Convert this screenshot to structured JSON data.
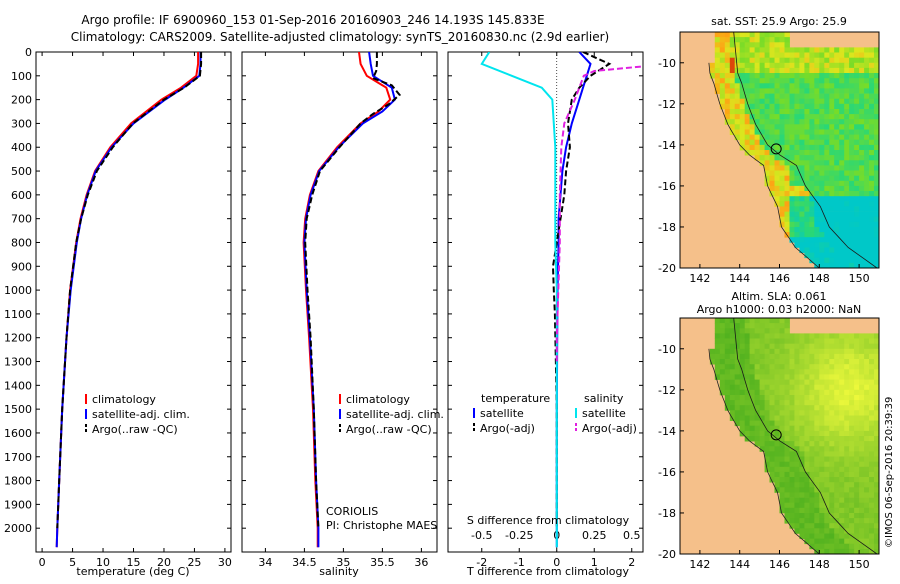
{
  "header": {
    "line1": "Argo profile: IF 6900960_153 01-Sep-2016 20160903_246 14.193S 145.833E",
    "line2": "Climatology: CARS2009. Satellite-adjusted climatology: synTS_20160830.nc (2.9d earlier)"
  },
  "colors": {
    "climatology": "#ff0000",
    "satellite": "#0000ff",
    "argo": "#000000",
    "salinity_satellite": "#00e5ee",
    "salinity_argo": "#e020e0",
    "land": "#f5c08a"
  },
  "chart_data": [
    {
      "type": "line",
      "id": "temperature",
      "xlabel": "temperature (deg C)",
      "xlim": [
        -1,
        31
      ],
      "ylim": [
        2100,
        0
      ],
      "xticks": [
        0,
        5,
        10,
        15,
        20,
        25,
        30
      ],
      "yticks": [
        0,
        100,
        200,
        300,
        400,
        500,
        600,
        700,
        800,
        900,
        1000,
        1100,
        1200,
        1300,
        1400,
        1500,
        1600,
        1700,
        1800,
        1900,
        2000
      ],
      "legend": [
        "climatology",
        "satellite-adj. clim.",
        "Argo(..raw -QC)"
      ],
      "series": [
        {
          "name": "climatology",
          "depth": [
            0,
            50,
            100,
            150,
            200,
            300,
            400,
            500,
            600,
            700,
            800,
            1000,
            1200,
            1500,
            1800,
            2000,
            2080
          ],
          "values": [
            25.6,
            25.6,
            25.3,
            22.8,
            19.6,
            14.6,
            11.2,
            8.7,
            7.3,
            6.3,
            5.6,
            4.6,
            4.0,
            3.3,
            2.8,
            2.5,
            2.4
          ]
        },
        {
          "name": "satellite-adj. clim.",
          "depth": [
            0,
            50,
            100,
            150,
            200,
            300,
            400,
            500,
            600,
            700,
            800,
            1000,
            1200,
            1500,
            1800,
            2000,
            2080
          ],
          "values": [
            26.0,
            26.0,
            25.8,
            23.2,
            20.2,
            15.0,
            11.4,
            8.8,
            7.4,
            6.4,
            5.7,
            4.7,
            4.0,
            3.3,
            2.8,
            2.5,
            2.4
          ]
        },
        {
          "name": "Argo(..raw -QC)",
          "depth": [
            0,
            50,
            100,
            150,
            200,
            300,
            400,
            500,
            600,
            700,
            800,
            1000,
            1200,
            1500,
            1800,
            2000
          ],
          "values": [
            26.1,
            26.1,
            25.9,
            23.3,
            20.0,
            14.9,
            11.6,
            9.0,
            7.5,
            6.4,
            5.6,
            4.6,
            4.0,
            3.3,
            2.8,
            2.5
          ]
        }
      ]
    },
    {
      "type": "line",
      "id": "salinity",
      "xlabel": "salinity",
      "xlim": [
        33.7,
        36.2
      ],
      "ylim": [
        2100,
        0
      ],
      "xticks": [
        34,
        34.5,
        35,
        35.5,
        36
      ],
      "legend": [
        "climatology",
        "satellite-adj. clim.",
        "Argo(..raw -QC)"
      ],
      "annotation": [
        "CORIOLIS",
        "PI: Christophe MAES"
      ],
      "series": [
        {
          "name": "climatology",
          "depth": [
            0,
            50,
            100,
            150,
            200,
            250,
            300,
            400,
            500,
            600,
            700,
            800,
            1000,
            1200,
            1500,
            1800,
            2000,
            2080
          ],
          "values": [
            35.2,
            35.22,
            35.3,
            35.55,
            35.6,
            35.45,
            35.22,
            34.92,
            34.68,
            34.57,
            34.51,
            34.49,
            34.52,
            34.56,
            34.61,
            34.64,
            34.67,
            34.67
          ]
        },
        {
          "name": "satellite-adj. clim.",
          "depth": [
            0,
            50,
            100,
            150,
            200,
            250,
            300,
            400,
            500,
            600,
            700,
            800,
            1000,
            1200,
            1500,
            1800,
            2000,
            2080
          ],
          "values": [
            35.33,
            35.35,
            35.38,
            35.62,
            35.66,
            35.5,
            35.25,
            34.94,
            34.69,
            34.58,
            34.52,
            34.5,
            34.53,
            34.57,
            34.62,
            34.65,
            34.68,
            34.68
          ]
        },
        {
          "name": "Argo(..raw -QC)",
          "depth": [
            0,
            50,
            80,
            110,
            140,
            180,
            220,
            260,
            300,
            400,
            500,
            600,
            700,
            800,
            1000,
            1200,
            1500,
            1800,
            2000
          ],
          "values": [
            35.43,
            35.43,
            35.42,
            35.38,
            35.62,
            35.72,
            35.58,
            35.38,
            35.22,
            34.95,
            34.7,
            34.6,
            34.53,
            34.51,
            34.54,
            34.58,
            34.62,
            34.65,
            34.68
          ]
        }
      ]
    },
    {
      "type": "line",
      "id": "difference",
      "xlabel": "T difference from climatology",
      "xlabel_top": "S difference from climatology",
      "xlim": [
        -2.9,
        2.3
      ],
      "ylim": [
        2100,
        0
      ],
      "xticks": [
        -2,
        -1,
        0,
        1,
        2
      ],
      "xticks_top": [
        "-0.5",
        "-0.25",
        "0",
        "0.25",
        "0.5"
      ],
      "legend_headers": [
        "temperature",
        "salinity"
      ],
      "legend": [
        "satellite",
        "Argo(-adj)",
        "satellite",
        "Argo(-adj)"
      ],
      "series": [
        {
          "name": "T satellite",
          "depth": [
            0,
            50,
            100,
            150,
            200,
            300,
            400,
            500,
            600,
            700,
            800,
            1000,
            1500,
            2000,
            2080
          ],
          "values": [
            0.6,
            0.9,
            0.8,
            0.7,
            0.6,
            0.4,
            0.25,
            0.15,
            0.1,
            0.05,
            0.05,
            0.02,
            0.0,
            0.0,
            0.0
          ]
        },
        {
          "name": "T Argo(-adj)",
          "depth": [
            0,
            50,
            100,
            150,
            200,
            300,
            400,
            500,
            600,
            700,
            800,
            900,
            1000,
            1100,
            1500,
            2000
          ],
          "values": [
            0.7,
            1.4,
            0.9,
            0.6,
            0.4,
            0.3,
            0.35,
            0.25,
            0.2,
            0.1,
            0.0,
            -0.1,
            -0.08,
            -0.05,
            0.0,
            0.0
          ]
        },
        {
          "name": "S satellite",
          "depth": [
            0,
            50,
            100,
            150,
            200,
            300,
            400,
            600,
            800,
            1000,
            1500,
            2000,
            2080
          ],
          "values": [
            -0.45,
            -0.5,
            -0.3,
            -0.1,
            -0.03,
            -0.02,
            -0.01,
            -0.01,
            -0.01,
            0.0,
            0.0,
            0.0,
            0.0
          ]
        },
        {
          "name": "S Argo(-adj)",
          "depth": [
            0,
            50,
            80,
            100,
            150,
            200,
            300,
            400,
            600,
            800,
            1000,
            1200,
            1300
          ],
          "values": [
            0.6,
            0.75,
            0.25,
            0.18,
            0.15,
            0.12,
            0.05,
            0.03,
            0.02,
            0.02,
            0.01,
            0.0,
            0.0
          ]
        }
      ]
    },
    {
      "type": "heatmap",
      "id": "sst-map",
      "title": "sat. SST: 25.9 Argo: 25.9",
      "xlim": [
        141,
        151
      ],
      "ylim": [
        -20,
        -8.5
      ],
      "xticks": [
        142,
        144,
        146,
        148,
        150
      ],
      "yticks": [
        -10,
        -12,
        -14,
        -16,
        -18,
        -20
      ],
      "argo_position": {
        "lon": 145.833,
        "lat": -14.193
      }
    },
    {
      "type": "heatmap",
      "id": "sla-map",
      "title": "Altim. SLA: 0.061",
      "subtitle": "Argo h1000: 0.03 h2000: NaN",
      "xlim": [
        141,
        151
      ],
      "ylim": [
        -20,
        -8.5
      ],
      "xticks": [
        142,
        144,
        146,
        148,
        150
      ],
      "yticks": [
        -10,
        -12,
        -14,
        -16,
        -18,
        -20
      ],
      "argo_position": {
        "lon": 145.833,
        "lat": -14.193
      }
    }
  ],
  "footer": {
    "stamp": "©IMOS 06-Sep-2016 20:39:39"
  }
}
